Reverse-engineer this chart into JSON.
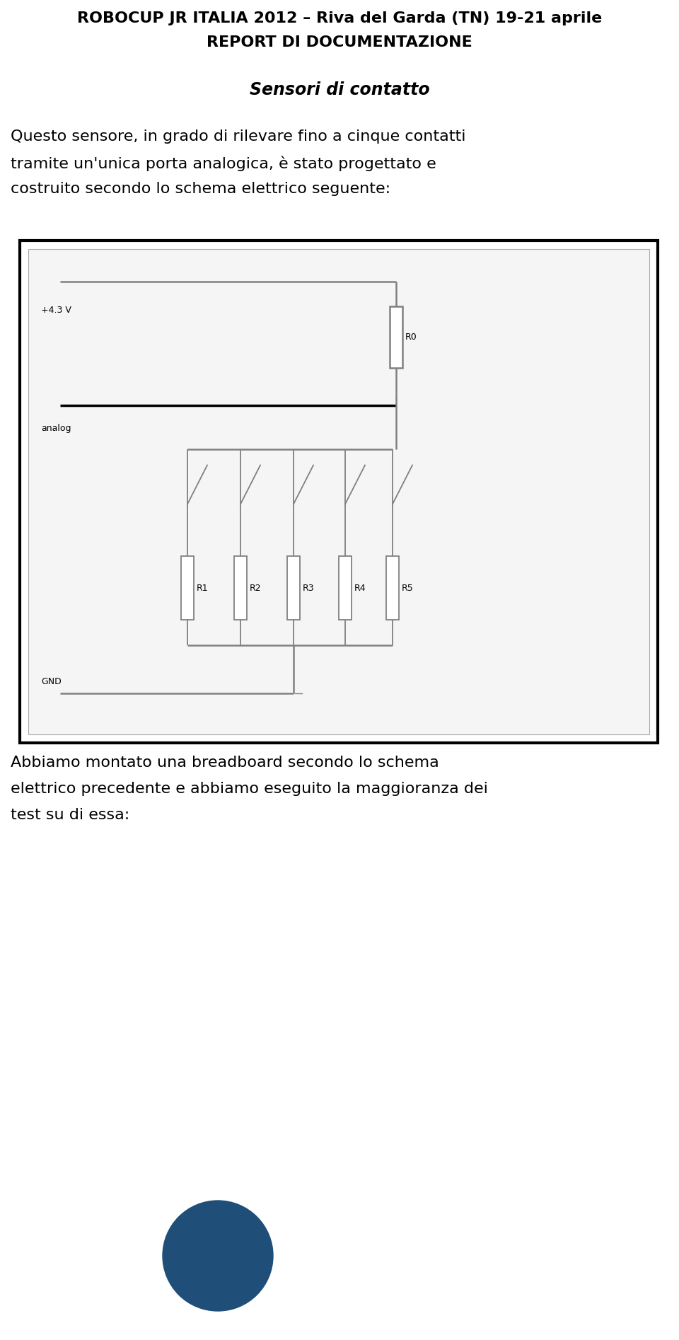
{
  "title_line1": "ROBOCUP JR ITALIA 2012 – Riva del Garda (TN) 19-21 aprile",
  "title_line2": "REPORT DI DOCUMENTAZIONE",
  "section_title": "Sensori di contatto",
  "para1_lines": [
    "Questo sensore, in grado di rilevare fino a cinque contatti",
    "tramite un'unica porta analogica, è stato progettato e",
    "costruito secondo lo schema elettrico seguente:"
  ],
  "para2_lines": [
    "Abbiamo montato una breadboard secondo lo schema",
    "elettrico precedente e abbiamo eseguito la maggioranza dei",
    "test su di essa:"
  ],
  "bg_color": "#ffffff",
  "text_color": "#000000",
  "gray": "#808080",
  "dark_gray": "#606060",
  "light_gray": "#c8c8c8",
  "circle_color": "#1f4e79",
  "vcc_label": "+4.3 V",
  "analog_label": "analog",
  "gnd_label": "GND",
  "r_labels": [
    "R0",
    "R1",
    "R2",
    "R3",
    "R4",
    "R5"
  ],
  "title_fontsize": 16,
  "section_fontsize": 17,
  "body_fontsize": 16,
  "circuit_label_fontsize": 9,
  "figw": 9.6,
  "figh": 18.94,
  "dpi": 100
}
